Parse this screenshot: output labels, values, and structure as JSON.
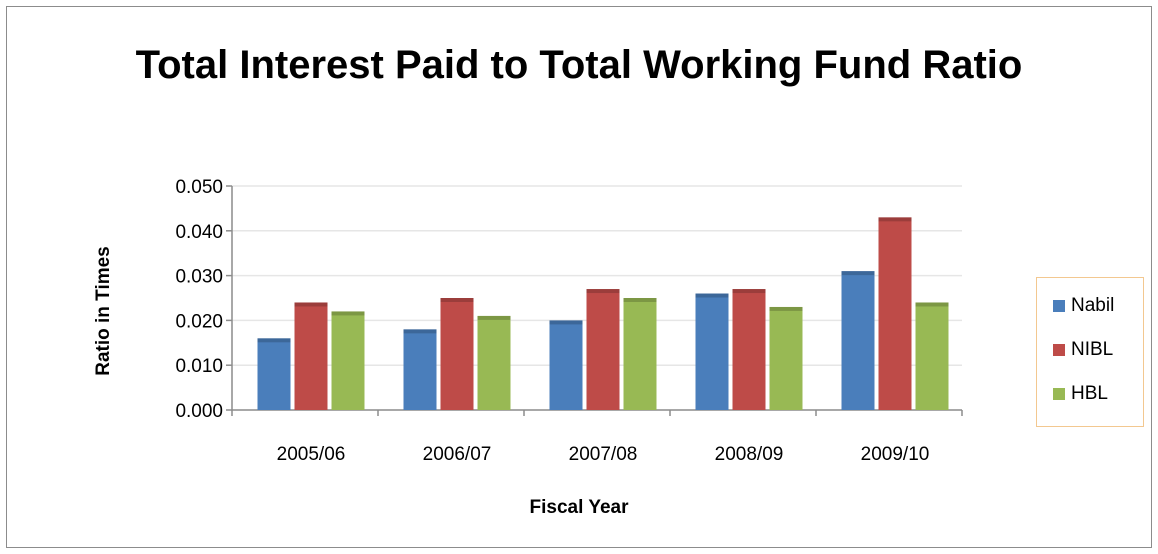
{
  "chart_data": {
    "type": "bar",
    "title": "Total Interest Paid to Total Working Fund Ratio",
    "xlabel": "Fiscal Year",
    "ylabel": "Ratio in Times",
    "categories": [
      "2005/06",
      "2006/07",
      "2007/08",
      "2008/09",
      "2009/10"
    ],
    "series": [
      {
        "name": "Nabil",
        "color": "#4a7ebb",
        "values": [
          0.016,
          0.018,
          0.02,
          0.026,
          0.031
        ]
      },
      {
        "name": "NIBL",
        "color": "#be4b48",
        "values": [
          0.024,
          0.025,
          0.027,
          0.027,
          0.043
        ]
      },
      {
        "name": "HBL",
        "color": "#98b954",
        "values": [
          0.022,
          0.021,
          0.025,
          0.023,
          0.024
        ]
      }
    ],
    "ylim": [
      0,
      0.05
    ],
    "yticks": [
      "0.000",
      "0.010",
      "0.020",
      "0.030",
      "0.040",
      "0.050"
    ],
    "grid": true,
    "legend_position": "right"
  }
}
